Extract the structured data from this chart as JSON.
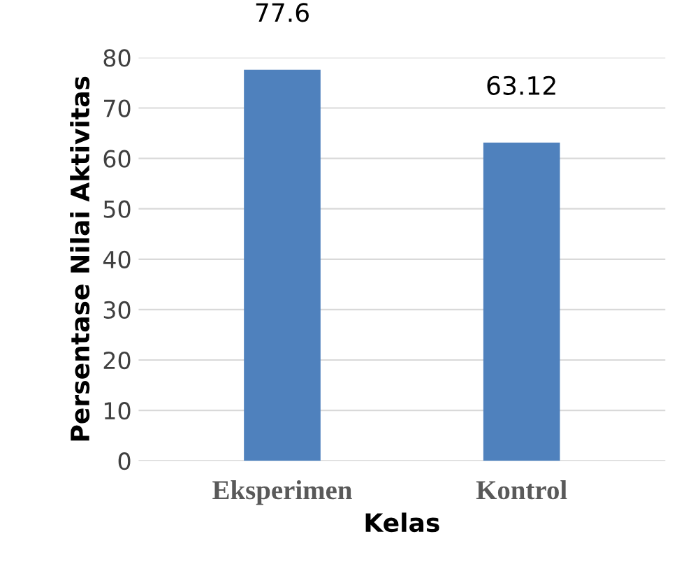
{
  "chart_data": {
    "type": "bar",
    "categories": [
      "Eksperimen",
      "Kontrol"
    ],
    "values": [
      77.6,
      63.12
    ],
    "color": "#4f81bd",
    "xlabel": "Kelas",
    "ylabel": "Persentase Nilai Aktivitas",
    "ylim": [
      0,
      80
    ],
    "yticks": [
      0,
      10,
      20,
      30,
      40,
      50,
      60,
      70,
      80
    ],
    "grid": "y",
    "data_labels": true
  }
}
